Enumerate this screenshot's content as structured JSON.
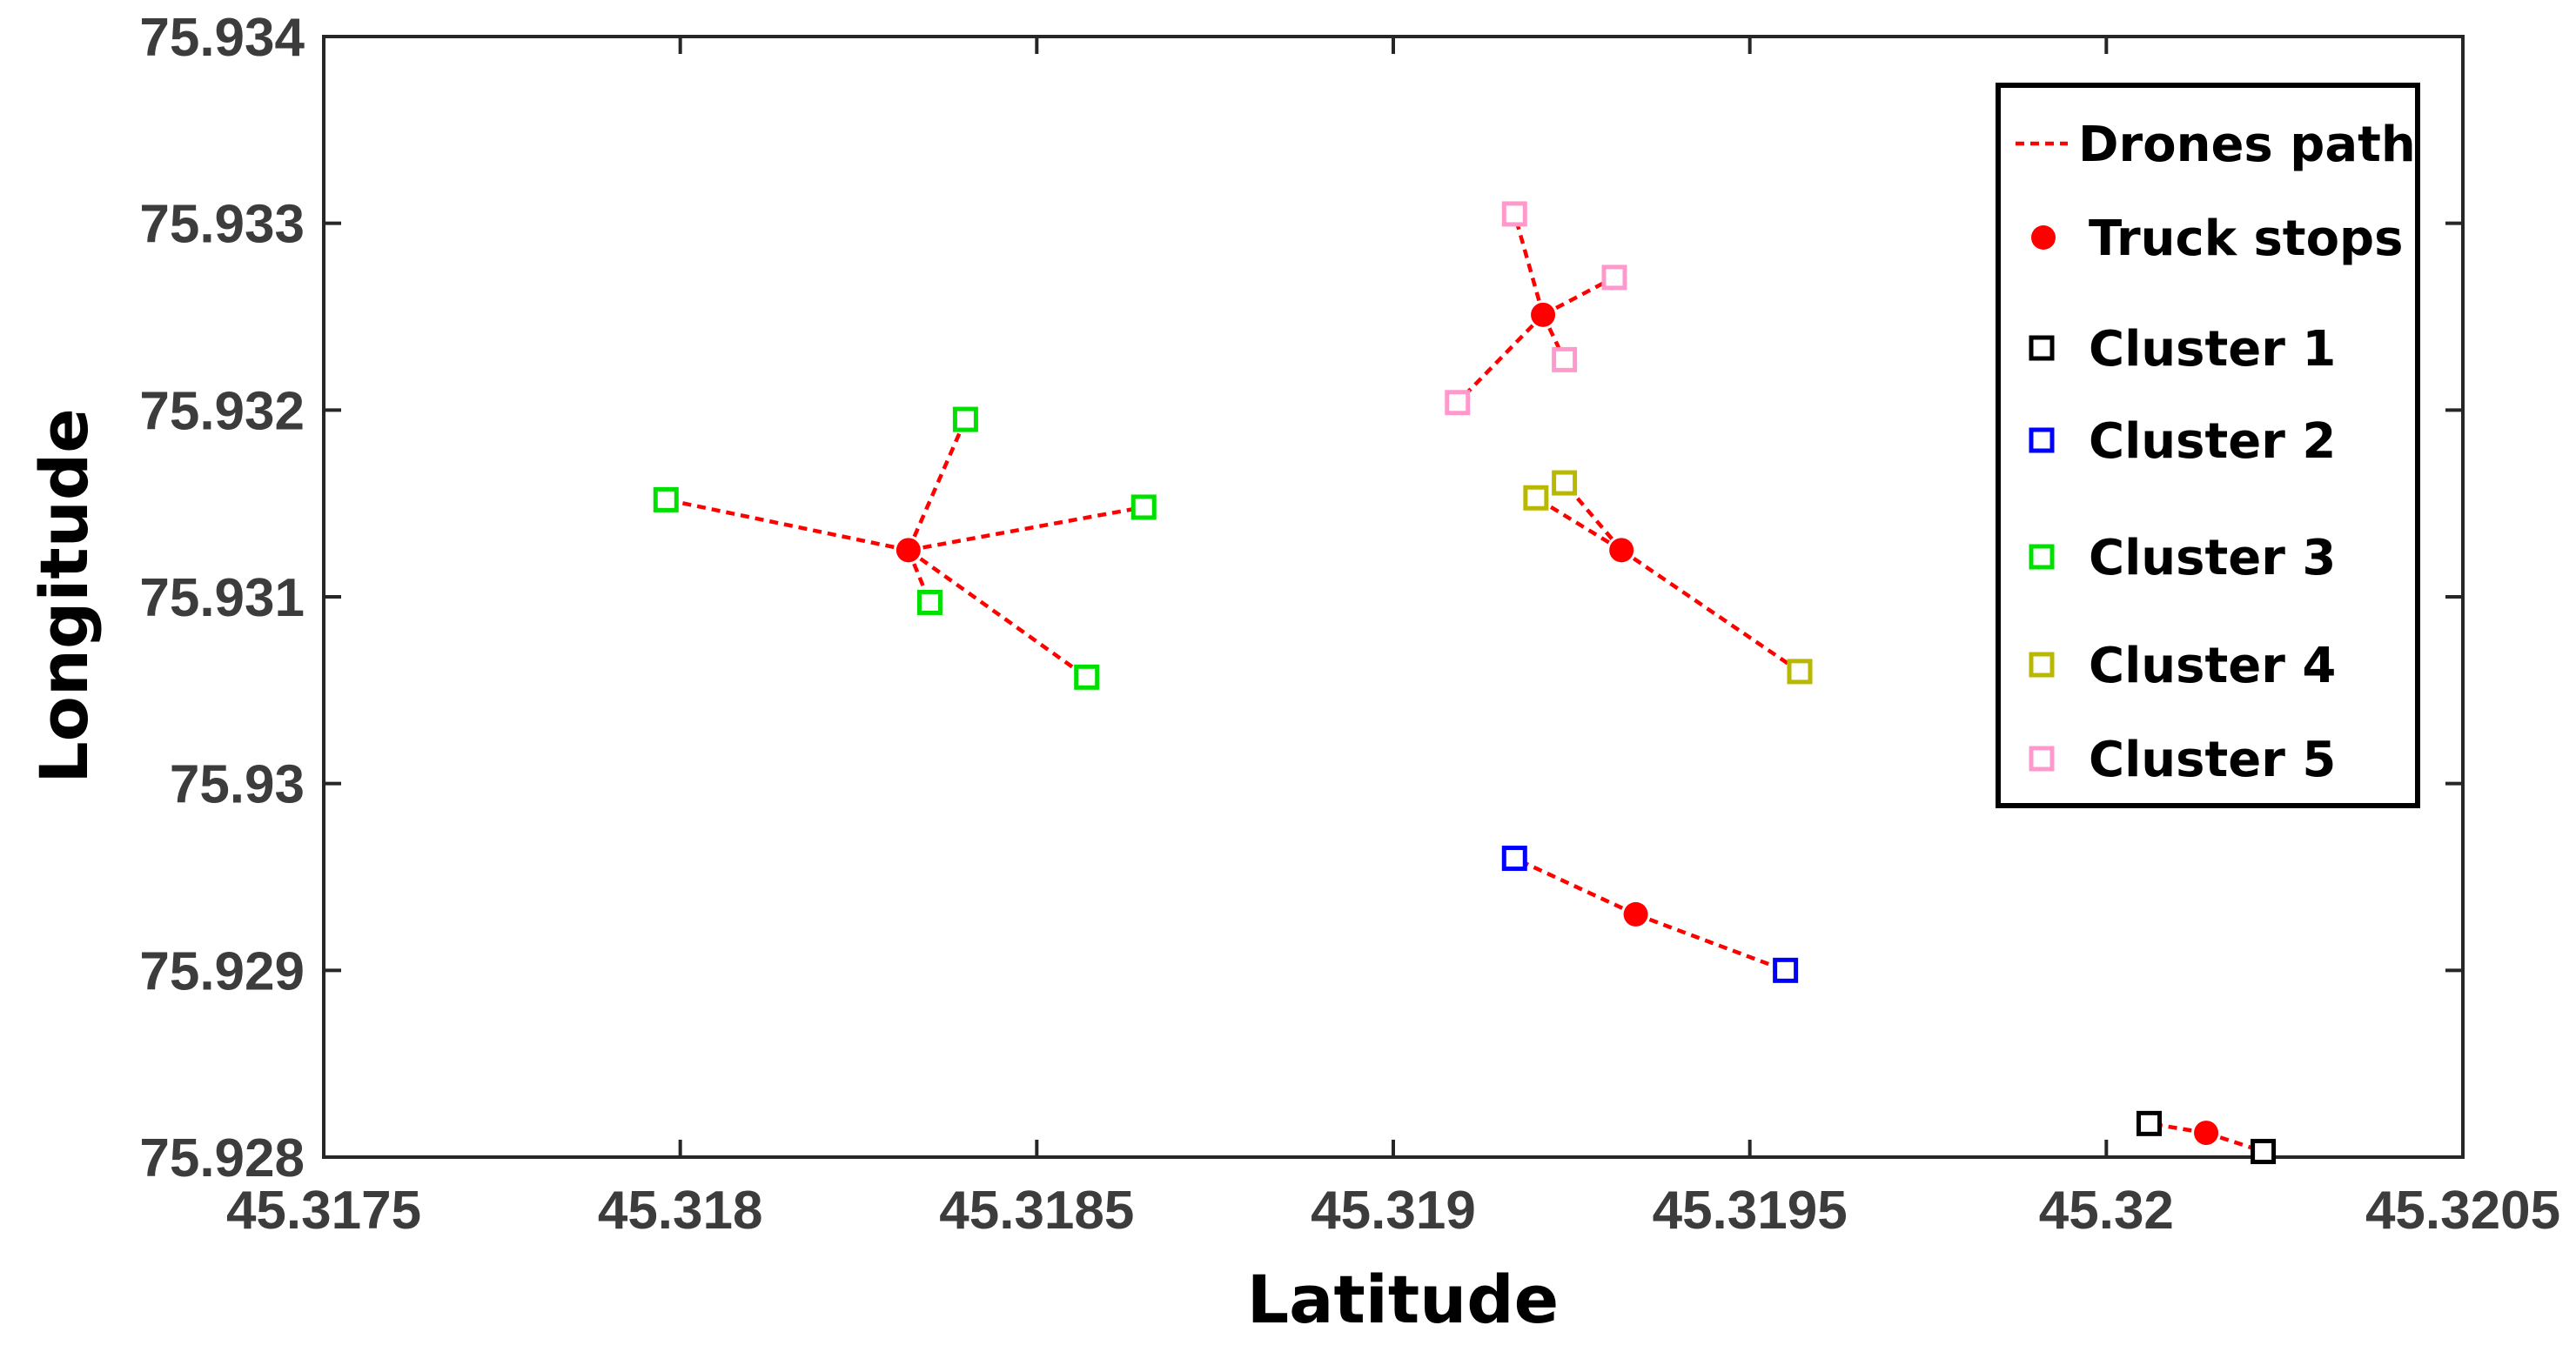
{
  "chart_data": {
    "type": "scatter",
    "xlabel": "Latitude",
    "ylabel": "Longitude",
    "xlim": [
      45.3175,
      45.3205
    ],
    "ylim": [
      75.928,
      75.934
    ],
    "xticks": [
      45.3175,
      45.318,
      45.3185,
      45.319,
      45.3195,
      45.32,
      45.3205
    ],
    "xtick_labels": [
      "45.3175",
      "45.318",
      "45.3185",
      "45.319",
      "45.3195",
      "45.32",
      "45.3205"
    ],
    "yticks": [
      75.928,
      75.929,
      75.93,
      75.931,
      75.932,
      75.933,
      75.934
    ],
    "ytick_labels": [
      "75.928",
      "75.929",
      "75.93",
      "75.931",
      "75.932",
      "75.933",
      "75.934"
    ],
    "grid": false,
    "legend_position": "top-right",
    "legend": [
      {
        "label": "Drones path",
        "marker": "dashed-line",
        "color": "#ff0000"
      },
      {
        "label": "Truck stops",
        "marker": "filled-circle",
        "color": "#ff0000"
      },
      {
        "label": "Cluster 1",
        "marker": "square",
        "color": "#000000"
      },
      {
        "label": "Cluster 2",
        "marker": "square",
        "color": "#0000ff"
      },
      {
        "label": "Cluster 3",
        "marker": "square",
        "color": "#00e000"
      },
      {
        "label": "Cluster 4",
        "marker": "square",
        "color": "#b8b800"
      },
      {
        "label": "Cluster 5",
        "marker": "square",
        "color": "#ff99cc"
      }
    ],
    "clusters": [
      {
        "name": "Cluster 1",
        "color": "#000000",
        "truck_stop": [
          45.32014,
          75.92813
        ],
        "points": [
          [
            45.32006,
            75.92818
          ],
          [
            45.32022,
            75.92803
          ]
        ]
      },
      {
        "name": "Cluster 2",
        "color": "#0000ff",
        "truck_stop": [
          45.31934,
          75.9293
        ],
        "points": [
          [
            45.31917,
            75.9296
          ],
          [
            45.31955,
            75.929
          ]
        ]
      },
      {
        "name": "Cluster 3",
        "color": "#00e000",
        "truck_stop": [
          45.31832,
          75.93125
        ],
        "points": [
          [
            45.31798,
            75.93152
          ],
          [
            45.3184,
            75.93195
          ],
          [
            45.31865,
            75.93148
          ],
          [
            45.31835,
            75.93097
          ],
          [
            45.31857,
            75.93057
          ]
        ]
      },
      {
        "name": "Cluster 4",
        "color": "#b8b800",
        "truck_stop": [
          45.31932,
          75.93125
        ],
        "points": [
          [
            45.3192,
            75.93153
          ],
          [
            45.31924,
            75.93161
          ],
          [
            45.31957,
            75.9306
          ]
        ]
      },
      {
        "name": "Cluster 5",
        "color": "#ff99cc",
        "truck_stop": [
          45.31921,
          75.93251
        ],
        "points": [
          [
            45.31917,
            75.93305
          ],
          [
            45.31931,
            75.93271
          ],
          [
            45.31924,
            75.93227
          ],
          [
            45.31909,
            75.93204
          ]
        ]
      }
    ]
  }
}
